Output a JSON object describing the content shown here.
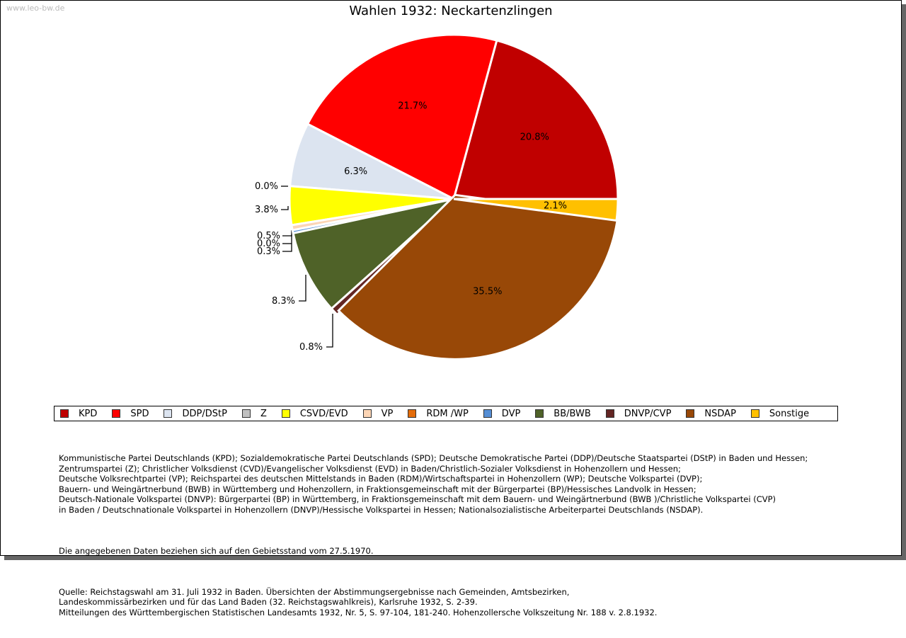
{
  "watermark": "www.leo-bw.de",
  "chart_data": {
    "type": "pie",
    "title": "Wahlen 1932: Neckartenzlingen",
    "legend_position": "bottom",
    "slices": [
      {
        "name": "KPD",
        "value": 20.8,
        "label": "20.8%",
        "color": "#c00000"
      },
      {
        "name": "SPD",
        "value": 21.7,
        "label": "21.7%",
        "color": "#ff0000"
      },
      {
        "name": "DDP/DStP",
        "value": 6.3,
        "label": "6.3%",
        "color": "#dce4f0"
      },
      {
        "name": "Z",
        "value": 0.0,
        "label": "0.0%",
        "color": "#c0c0c0"
      },
      {
        "name": "CSVD/EVD",
        "value": 3.8,
        "label": "3.8%",
        "color": "#ffff00"
      },
      {
        "name": "VP",
        "value": 0.5,
        "label": "0.5%",
        "color": "#fcd5b5"
      },
      {
        "name": "RDM /WP",
        "value": 0.0,
        "label": "0.0%",
        "color": "#e46c0a"
      },
      {
        "name": "DVP",
        "value": 0.3,
        "label": "0.3%",
        "color": "#558ed5"
      },
      {
        "name": "BB/BWB",
        "value": 8.3,
        "label": "8.3%",
        "color": "#4f6228"
      },
      {
        "name": "DNVP/CVP",
        "value": 0.8,
        "label": "0.8%",
        "color": "#632523"
      },
      {
        "name": "NSDAP",
        "value": 35.5,
        "label": "35.5%",
        "color": "#984807"
      },
      {
        "name": "Sonstige",
        "value": 2.1,
        "label": "2.1%",
        "color": "#ffc000"
      }
    ]
  },
  "notes": [
    "Kommunistische Partei Deutschlands (KPD); Sozialdemokratische Partei Deutschlands (SPD); Deutsche Demokratische Partei (DDP)/Deutsche Staatspartei (DStP) in Baden und Hessen;\nZentrumspartei (Z); Christlicher Volksdienst (CVD)/Evangelischer Volksdienst (EVD) in Baden/Christlich-Sozialer Volksdienst in Hohenzollern und Hessen;\nDeutsche Volksrechtpartei (VP); Reichspartei des deutschen Mittelstands in Baden (RDM)/Wirtschaftspartei in Hohenzollern (WP); Deutsche Volkspartei (DVP);\nBauern- und Weingärtnerbund (BWB) in Württemberg und Hohenzollern, in Fraktionsgemeinschaft mit der Bürgerpartei (BP)/Hessisches Landvolk in Hessen;\nDeutsch-Nationale Volkspartei (DNVP): Bürgerpartei (BP) in Württemberg, in Fraktionsgemeinschaft mit dem Bauern- und Weingärtnerbund (BWB )/Christliche Volkspartei (CVP)\nin Baden / Deutschnationale Volkspartei in Hohenzollern (DNVP)/Hessische Volkspartei in Hessen; Nationalsozialistische Arbeiterpartei Deutschlands (NSDAP).",
    "Die angegebenen Daten beziehen sich auf den Gebietsstand vom 27.5.1970.",
    "Quelle: Reichstagswahl am 31. Juli 1932 in Baden. Übersichten der Abstimmungsergebnisse nach Gemeinden, Amtsbezirken,\nLandeskommissärbezirken und für das Land Baden (32. Reichstagswahlkreis), Karlsruhe 1932, S. 2-39.\nMitteilungen des Württembergischen Statistischen Landesamts 1932, Nr. 5, S. 97-104, 181-240. Hohenzollersche Volkszeitung Nr. 188 v. 2.8.1932."
  ]
}
